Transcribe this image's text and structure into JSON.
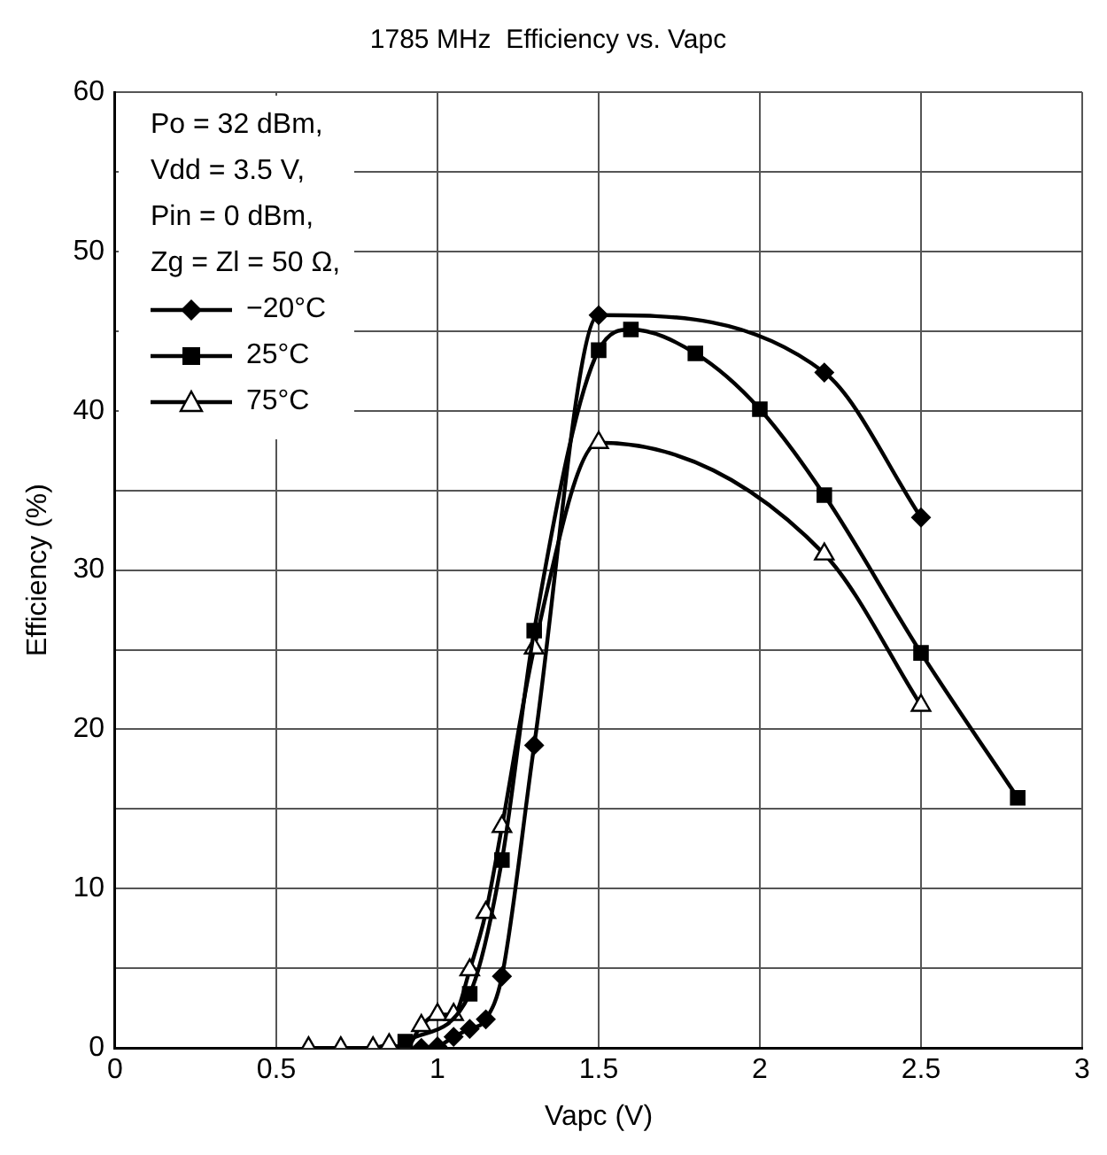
{
  "chart_data": {
    "type": "line",
    "title": "1785 MHz  Efficiency vs. Vapc",
    "xlabel": "Vapc (V)",
    "ylabel": "Efficiency (%)",
    "annotations": [
      "Po = 32 dBm,",
      "Vdd = 3.5 V,",
      "Pin = 0 dBm,",
      "Zg = Zl = 50 Ω,"
    ],
    "xlim": [
      0,
      3
    ],
    "xticks": [
      0,
      0.5,
      1,
      1.5,
      2,
      2.5,
      3
    ],
    "ylim": [
      0,
      60
    ],
    "yticks": [
      0,
      {
        "value": 5,
        "label": null
      },
      10,
      {
        "value": 15,
        "label": null
      },
      20,
      {
        "value": 25,
        "label": null
      },
      30,
      {
        "value": 35,
        "label": null
      },
      40,
      {
        "value": 45,
        "label": null
      },
      50,
      {
        "value": 55,
        "label": null
      },
      60
    ],
    "grid": true,
    "legend": "top left",
    "line_style": "solid",
    "series": [
      {
        "name": "−20°C",
        "color": "#000000",
        "marker": "diamond",
        "x": [
          0.95,
          1.0,
          1.05,
          1.1,
          1.15,
          1.2,
          1.3,
          1.5,
          2.2,
          2.5
        ],
        "values": [
          0,
          0.1,
          0.7,
          1.2,
          1.8,
          4.5,
          19.0,
          46,
          42.4,
          33.3
        ]
      },
      {
        "name": "25°C",
        "color": "#000000",
        "marker": "square",
        "x": [
          0.9,
          1.1,
          1.2,
          1.3,
          1.5,
          1.6,
          1.8,
          2.0,
          2.2,
          2.5,
          2.8
        ],
        "values": [
          0.4,
          3.4,
          11.8,
          26.2,
          43.8,
          45.1,
          43.6,
          40.1,
          34.7,
          24.8,
          15.7
        ]
      },
      {
        "name": "75°C",
        "color": "#000000",
        "marker": "triangle",
        "x": [
          0.6,
          0.7,
          0.8,
          0.85,
          0.9,
          0.95,
          1.0,
          1.05,
          1.1,
          1.15,
          1.2,
          1.3,
          1.5,
          2.2,
          2.5
        ],
        "values": [
          0,
          0,
          0,
          0.2,
          0,
          1.4,
          2.1,
          2.1,
          4.9,
          8.5,
          13.9,
          25.1,
          38.0,
          31,
          21.5
        ]
      }
    ]
  }
}
